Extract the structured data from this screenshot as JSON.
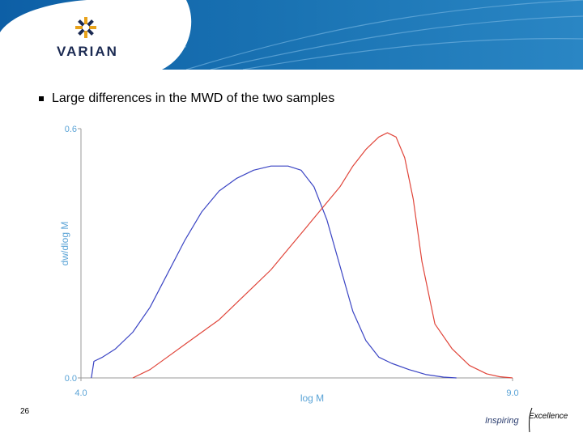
{
  "header": {
    "logo_text": "VARIAN",
    "logo_icon": "varian-star-icon",
    "banner_color": "#1a73b3"
  },
  "slide": {
    "bullet_text": "Large differences in the MWD of the two samples",
    "page_number": "26"
  },
  "footer": {
    "inspiring": "Inspiring",
    "excellence": "Excellence"
  },
  "chart_data": {
    "type": "line",
    "xlabel": "log M",
    "ylabel": "dw/dlog M",
    "xlim": [
      4.0,
      9.0
    ],
    "ylim": [
      0.0,
      0.6
    ],
    "x_tick_labels": [
      "4.0",
      "9.0"
    ],
    "y_tick_labels": [
      "0.0",
      "0.6"
    ],
    "grid": false,
    "legend": "none",
    "series": [
      {
        "color": "#3b45c4",
        "x": [
          4.12,
          4.15,
          4.25,
          4.4,
          4.6,
          4.8,
          5.0,
          5.2,
          5.4,
          5.6,
          5.8,
          6.0,
          6.2,
          6.4,
          6.55,
          6.7,
          6.85,
          7.0,
          7.15,
          7.3,
          7.45,
          7.6,
          7.8,
          8.0,
          8.2,
          8.35
        ],
        "y": [
          0.0,
          0.04,
          0.05,
          0.07,
          0.11,
          0.17,
          0.25,
          0.33,
          0.4,
          0.45,
          0.48,
          0.5,
          0.51,
          0.51,
          0.5,
          0.46,
          0.38,
          0.27,
          0.16,
          0.09,
          0.05,
          0.035,
          0.02,
          0.008,
          0.002,
          0.0
        ]
      },
      {
        "color": "#e0453a",
        "x": [
          4.6,
          4.8,
          5.0,
          5.2,
          5.4,
          5.6,
          5.8,
          6.0,
          6.2,
          6.4,
          6.6,
          6.8,
          7.0,
          7.15,
          7.3,
          7.45,
          7.55,
          7.65,
          7.75,
          7.85,
          7.95,
          8.1,
          8.3,
          8.5,
          8.7,
          8.85,
          8.95,
          9.0
        ],
        "y": [
          0.0,
          0.02,
          0.05,
          0.08,
          0.11,
          0.14,
          0.18,
          0.22,
          0.26,
          0.31,
          0.36,
          0.41,
          0.46,
          0.51,
          0.55,
          0.58,
          0.59,
          0.58,
          0.53,
          0.43,
          0.28,
          0.13,
          0.07,
          0.03,
          0.01,
          0.003,
          0.001,
          0.0
        ]
      }
    ]
  }
}
